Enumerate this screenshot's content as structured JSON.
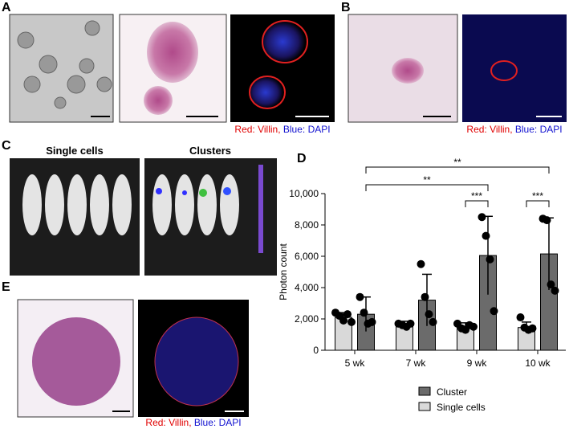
{
  "panels": {
    "a": "A",
    "b": "B",
    "c": "C",
    "d": "D",
    "e": "E"
  },
  "stain_a": {
    "red": "Red: Villin,",
    "blue": "Blue: DAPI"
  },
  "stain_b": {
    "red": "Red: Villin,",
    "blue": "Blue: DAPI"
  },
  "stain_e": {
    "red": "Red: Villin,",
    "blue": "Blue: DAPI"
  },
  "imaging": {
    "left": "Single cells",
    "right": "Clusters"
  },
  "chart_data": {
    "type": "bar",
    "categories": [
      "5 wk",
      "7 wk",
      "9 wk",
      "10 wk"
    ],
    "y_label": "Photon count",
    "ylim": [
      0,
      10000
    ],
    "yticks": [
      0,
      {
        "value": 2000,
        "label": "2,000"
      },
      {
        "value": 4000,
        "label": "4,000"
      },
      {
        "value": 6000,
        "label": "6,000"
      },
      {
        "value": 8000,
        "label": "8,000"
      },
      {
        "value": 10000,
        "label": "10,000"
      }
    ],
    "series": [
      {
        "name": "Cluster",
        "color": "#6b6b6b",
        "values": [
          2300,
          3200,
          6050,
          6150
        ],
        "errors": [
          1100,
          1650,
          2500,
          2300
        ],
        "points": [
          [
            3400,
            2400,
            1700,
            1800
          ],
          [
            5500,
            3400,
            2300,
            1800
          ],
          [
            8500,
            7300,
            5800,
            2500
          ],
          [
            8400,
            8300,
            4200,
            3800
          ]
        ]
      },
      {
        "name": "Single cells",
        "color": "#d9d9d9",
        "values": [
          2100,
          1650,
          1500,
          1450
        ],
        "errors": [
          300,
          200,
          250,
          350
        ],
        "points": [
          [
            2400,
            2200,
            1900,
            2300,
            1800
          ],
          [
            1700,
            1600,
            1500,
            1700
          ],
          [
            1700,
            1400,
            1300,
            1600,
            1500
          ],
          [
            2100,
            1450,
            1300,
            1400
          ]
        ]
      }
    ],
    "annotations": [
      "**",
      "**",
      "***",
      "***"
    ],
    "legend": "lower center"
  }
}
